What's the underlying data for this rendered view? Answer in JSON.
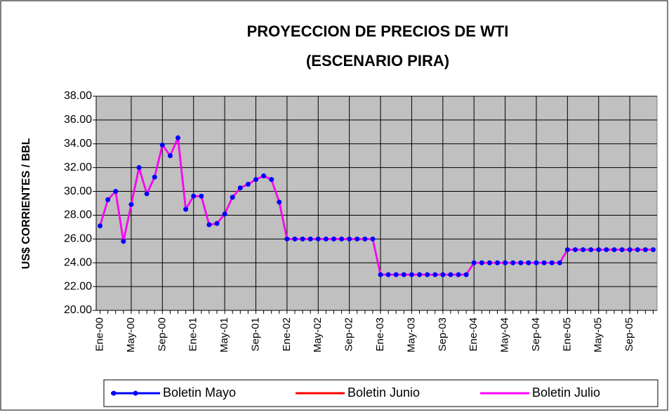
{
  "chart_data": {
    "type": "line",
    "title": [
      "PROYECCION DE PRECIOS DE WTI",
      "(ESCENARIO PIRA)"
    ],
    "y_label": "US$ CORRIENTES / BBL",
    "categories": [
      "Ene-00",
      null,
      null,
      null,
      "May-00",
      null,
      null,
      null,
      "Sep-00",
      null,
      null,
      null,
      "Ene-01",
      null,
      null,
      null,
      "May-01",
      null,
      null,
      null,
      "Sep-01",
      null,
      null,
      null,
      "Ene-02",
      null,
      null,
      null,
      "May-02",
      null,
      null,
      null,
      "Sep-02",
      null,
      null,
      null,
      "Ene-03",
      null,
      null,
      null,
      "May-03",
      null,
      null,
      null,
      "Sep-03",
      null,
      null,
      null,
      "Ene-04",
      null,
      null,
      null,
      "May-04",
      null,
      null,
      null,
      "Sep-04",
      null,
      null,
      null,
      "Ene-05",
      null,
      null,
      null,
      "May-05",
      null,
      null,
      null,
      "Sep-05",
      null,
      null,
      null
    ],
    "series": [
      {
        "name": "Boletin Mayo",
        "color": "#0000ff",
        "markers": true,
        "values": [
          27.1,
          29.3,
          30.0,
          25.8,
          28.9,
          32.0,
          29.8,
          31.2,
          33.9,
          33.0,
          34.5,
          28.5,
          29.6,
          29.6,
          27.2,
          27.3,
          28.1,
          29.5,
          30.3,
          30.6,
          31.0,
          31.3,
          31.0,
          29.1,
          26,
          26,
          26,
          26,
          26,
          26,
          26,
          26,
          26,
          26,
          26,
          26,
          23,
          23,
          23,
          23,
          23,
          23,
          23,
          23,
          23,
          23,
          23,
          23,
          24,
          24,
          24,
          24,
          24,
          24,
          24,
          24,
          24,
          24,
          24,
          24,
          25.1,
          25.1,
          25.1,
          25.1,
          25.1,
          25.1,
          25.1,
          25.1,
          25.1,
          25.1,
          25.1,
          25.1
        ]
      },
      {
        "name": "Boletin Junio",
        "color": "#ff0000",
        "markers": false,
        "values": [
          27.1,
          29.3,
          30.0,
          25.8,
          28.9,
          32.0,
          29.8,
          31.2,
          33.9,
          33.0,
          34.5,
          28.5,
          29.6,
          29.6,
          27.2,
          27.3,
          28.1,
          29.5,
          30.3,
          30.6,
          31.0,
          31.3,
          31.0,
          29.1,
          26,
          26,
          26,
          26,
          26,
          26,
          26,
          26,
          26,
          26,
          26,
          26,
          23,
          23,
          23,
          23,
          23,
          23,
          23,
          23,
          23,
          23,
          23,
          23,
          24,
          24,
          24,
          24,
          24,
          24,
          24,
          24,
          24,
          24,
          24,
          24,
          25.1,
          25.1,
          25.1,
          25.1,
          25.1,
          25.1,
          25.1,
          25.1,
          25.1,
          25.1,
          25.1,
          25.1
        ]
      },
      {
        "name": "Boletin Julio",
        "color": "#ff00ff",
        "markers": false,
        "values": [
          27.1,
          29.3,
          30.0,
          25.8,
          28.9,
          32.0,
          29.8,
          31.2,
          33.9,
          33.0,
          34.5,
          28.5,
          29.6,
          29.6,
          27.2,
          27.3,
          28.1,
          29.5,
          30.3,
          30.6,
          31.0,
          31.3,
          31.0,
          29.1,
          26,
          26,
          26,
          26,
          26,
          26,
          26,
          26,
          26,
          26,
          26,
          26,
          23,
          23,
          23,
          23,
          23,
          23,
          23,
          23,
          23,
          23,
          23,
          23,
          24,
          24,
          24,
          24,
          24,
          24,
          24,
          24,
          24,
          24,
          24,
          24,
          25.1,
          25.1,
          25.1,
          25.1,
          25.1,
          25.1,
          25.1,
          25.1,
          25.1,
          25.1,
          25.1,
          25.1
        ]
      }
    ],
    "ylim": [
      20,
      38
    ],
    "yticks": [
      {
        "value": 20,
        "label": "20.00"
      },
      {
        "value": 22,
        "label": "22.00"
      },
      {
        "value": 24,
        "label": "24.00"
      },
      {
        "value": 26,
        "label": "26.00"
      },
      {
        "value": 28,
        "label": "28.00"
      },
      {
        "value": 30,
        "label": "30.00"
      },
      {
        "value": 32,
        "label": "32.00"
      },
      {
        "value": 34,
        "label": "34.00"
      },
      {
        "value": 36,
        "label": "36.00"
      },
      {
        "value": 38,
        "label": "38.00"
      }
    ],
    "grid": true,
    "legend": "bottom",
    "plot_background": "#c0c0c0"
  }
}
